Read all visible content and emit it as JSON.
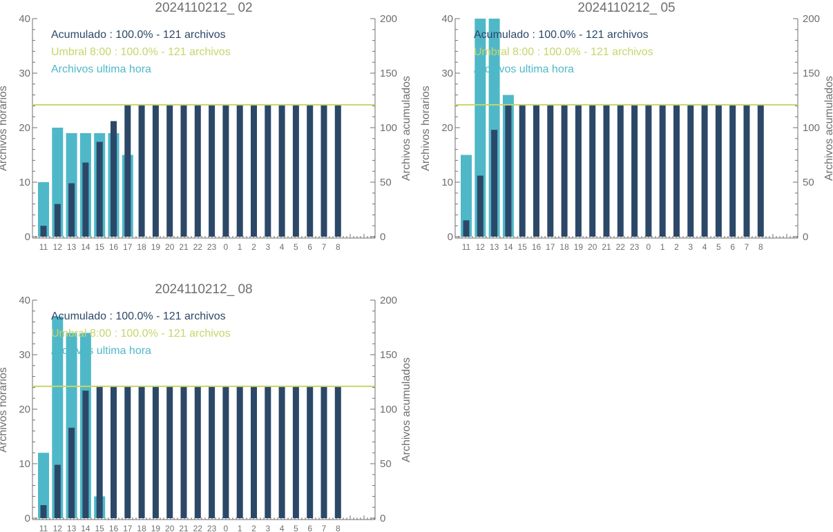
{
  "colors": {
    "hourly": "#4fb8c8",
    "cumulative": "#2c4868",
    "threshold": "#c8d46a",
    "axis": "#6e6e6e"
  },
  "chart_data": [
    {
      "type": "bar",
      "title": "2024110212_ 02",
      "ylabel": "Archivos horarios",
      "y2label": "Archivos acumulados",
      "ylim": [
        0,
        40
      ],
      "y2lim": [
        0,
        200
      ],
      "yticks": [
        "0",
        "10",
        "20",
        "30",
        "40"
      ],
      "y2ticks": [
        "0",
        "50",
        "100",
        "150",
        "200"
      ],
      "categories": [
        "11",
        "12",
        "13",
        "14",
        "15",
        "16",
        "17",
        "18",
        "19",
        "20",
        "21",
        "22",
        "23",
        "0",
        "1",
        "2",
        "3",
        "4",
        "5",
        "6",
        "7",
        "8"
      ],
      "legend": [
        "Acumulado : 100.0% - 121 archivos",
        "Umbral 8:00 : 100.0% - 121 archivos",
        "Archivos ultima hora"
      ],
      "threshold": 121,
      "series": [
        {
          "name": "Archivos ultima hora",
          "values": [
            10,
            20,
            19,
            19,
            19,
            19,
            15,
            0,
            0,
            0,
            0,
            0,
            0,
            0,
            0,
            0,
            0,
            0,
            0,
            0,
            0,
            0
          ]
        },
        {
          "name": "Acumulado",
          "values": [
            10,
            30,
            49,
            68,
            87,
            106,
            121,
            121,
            121,
            121,
            121,
            121,
            121,
            121,
            121,
            121,
            121,
            121,
            121,
            121,
            121,
            121
          ]
        }
      ]
    },
    {
      "type": "bar",
      "title": "2024110212_ 05",
      "ylabel": "Archivos horarios",
      "y2label": "Archivos acumulados",
      "ylim": [
        0,
        40
      ],
      "y2lim": [
        0,
        200
      ],
      "yticks": [
        "0",
        "10",
        "20",
        "30",
        "40"
      ],
      "y2ticks": [
        "0",
        "50",
        "100",
        "150",
        "200"
      ],
      "categories": [
        "11",
        "12",
        "13",
        "14",
        "15",
        "16",
        "17",
        "18",
        "19",
        "20",
        "21",
        "22",
        "23",
        "0",
        "1",
        "2",
        "3",
        "4",
        "5",
        "6",
        "7",
        "8"
      ],
      "legend": [
        "Acumulado : 100.0% - 121 archivos",
        "Umbral 8:00 : 100.0% - 121 archivos",
        "Archivos ultima hora"
      ],
      "threshold": 121,
      "series": [
        {
          "name": "Archivos ultima hora",
          "values": [
            15,
            41,
            42,
            26,
            0,
            0,
            0,
            0,
            0,
            0,
            0,
            0,
            0,
            0,
            0,
            0,
            0,
            0,
            0,
            0,
            0,
            0
          ]
        },
        {
          "name": "Acumulado",
          "values": [
            15,
            56,
            98,
            121,
            121,
            121,
            121,
            121,
            121,
            121,
            121,
            121,
            121,
            121,
            121,
            121,
            121,
            121,
            121,
            121,
            121,
            121
          ]
        }
      ]
    },
    {
      "type": "bar",
      "title": "2024110212_ 08",
      "ylabel": "Archivos horarios",
      "y2label": "Archivos acumulados",
      "ylim": [
        0,
        40
      ],
      "y2lim": [
        0,
        200
      ],
      "yticks": [
        "0",
        "10",
        "20",
        "30",
        "40"
      ],
      "y2ticks": [
        "0",
        "50",
        "100",
        "150",
        "200"
      ],
      "categories": [
        "11",
        "12",
        "13",
        "14",
        "15",
        "16",
        "17",
        "18",
        "19",
        "20",
        "21",
        "22",
        "23",
        "0",
        "1",
        "2",
        "3",
        "4",
        "5",
        "6",
        "7",
        "8"
      ],
      "legend": [
        "Acumulado : 100.0% - 121 archivos",
        "Umbral 8:00 : 100.0% - 121 archivos",
        "Archivos ultima hora"
      ],
      "threshold": 121,
      "series": [
        {
          "name": "Archivos ultima hora",
          "values": [
            12,
            37,
            34,
            34,
            4,
            0,
            0,
            0,
            0,
            0,
            0,
            0,
            0,
            0,
            0,
            0,
            0,
            0,
            0,
            0,
            0,
            0
          ]
        },
        {
          "name": "Acumulado",
          "values": [
            12,
            49,
            83,
            117,
            121,
            121,
            121,
            121,
            121,
            121,
            121,
            121,
            121,
            121,
            121,
            121,
            121,
            121,
            121,
            121,
            121,
            121
          ]
        }
      ]
    }
  ]
}
